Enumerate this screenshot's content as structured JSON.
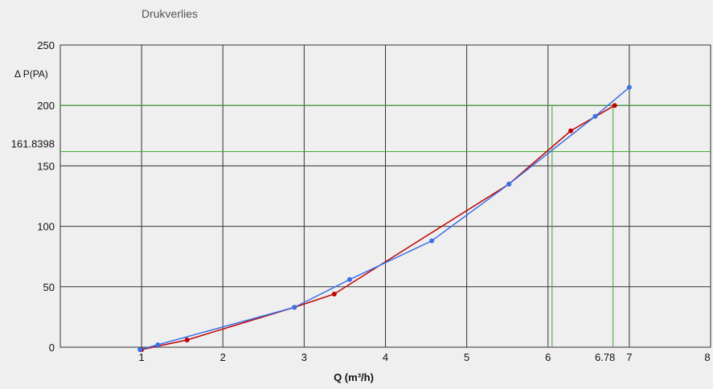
{
  "chart_data": {
    "type": "line",
    "title": "Drukverlies",
    "xlabel": "Q (m³/h)",
    "ylabel": "Δ P(PA)",
    "xlim": [
      0,
      8
    ],
    "ylim": [
      0,
      250
    ],
    "x_ticks": [
      1,
      2,
      3,
      4,
      5,
      6,
      7,
      8
    ],
    "y_ticks": [
      0,
      50,
      100,
      150,
      200,
      250
    ],
    "grid": true,
    "series": [
      {
        "color": "#c00000",
        "x": [
          1.0,
          1.56,
          2.88,
          3.37,
          5.52,
          6.28,
          6.82
        ],
        "y": [
          -2,
          6,
          33,
          44,
          135,
          179,
          200
        ]
      },
      {
        "color": "#3b6fe6",
        "x": [
          0.98,
          1.2,
          2.88,
          3.56,
          4.57,
          5.52,
          6.58,
          7.0
        ],
        "y": [
          -2,
          2,
          33,
          56,
          88,
          135,
          191,
          215
        ]
      }
    ],
    "annotations": [
      {
        "type": "hline",
        "y": 200,
        "color": "#3aa52d"
      },
      {
        "type": "hline",
        "y": 161.8398,
        "label": "161.8398",
        "color": "#3aa52d"
      },
      {
        "type": "vline",
        "x": 6.05,
        "color": "#3aa52d"
      },
      {
        "type": "vline",
        "x": 6.8,
        "label": "6.78",
        "color": "#3aa52d"
      }
    ]
  }
}
